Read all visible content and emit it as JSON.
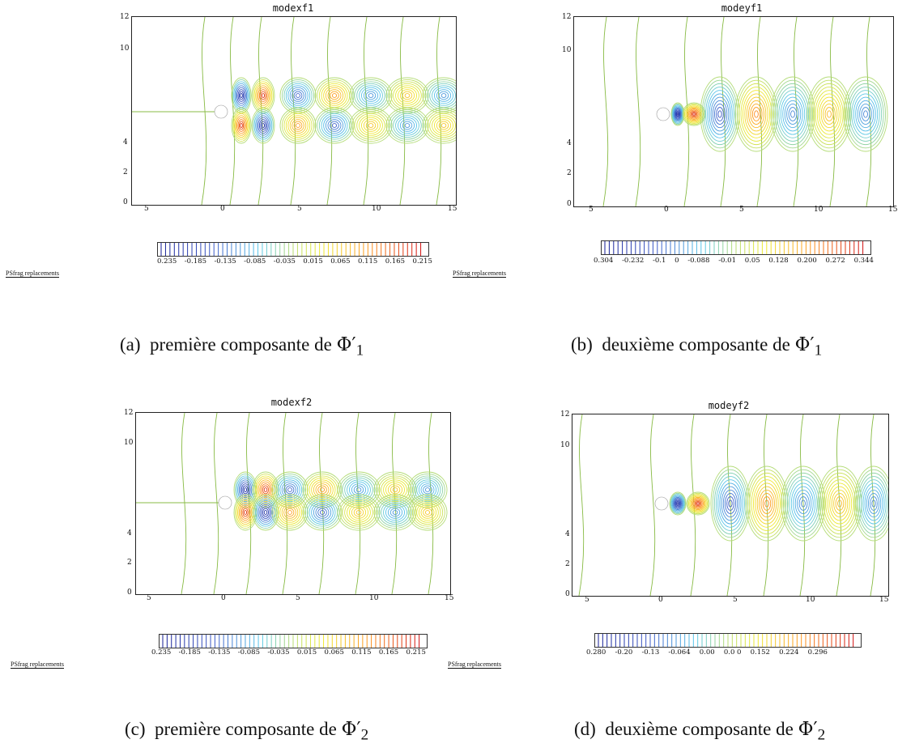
{
  "panels": [
    {
      "id": "a",
      "title": "modexf1",
      "colorbar_labels": [
        "0.235",
        "-0.185",
        "-0.135",
        "-0.085",
        "-0.035",
        "0.015",
        "0.065",
        "0.115",
        "0.165",
        "0.215"
      ],
      "psfrag": "PSfrag replacements",
      "caption_label": "(a)",
      "caption_text": "première composante de",
      "caption_symbol": "Φ′",
      "caption_sub": "1"
    },
    {
      "id": "b",
      "title": "modeyf1",
      "colorbar_labels": [
        "0.304",
        "-0.232",
        "-0.1",
        "0",
        "-0.088",
        "-0.01",
        "0.05",
        "0.128",
        "0.200",
        "0.272",
        "0.344"
      ],
      "psfrag": "PSfrag replacements",
      "caption_label": "(b)",
      "caption_text": "deuxième composante de",
      "caption_symbol": "Φ′",
      "caption_sub": "1"
    },
    {
      "id": "c",
      "title": "modexf2",
      "colorbar_labels": [
        "0.235",
        "-0.185",
        "-0.135",
        "-0.085",
        "-0.035",
        "0.015",
        "0.065",
        "0.115",
        "0.165",
        "0.215"
      ],
      "psfrag": "PSfrag replacements",
      "caption_label": "(c)",
      "caption_text": "première composante de",
      "caption_symbol": "Φ′",
      "caption_sub": "2"
    },
    {
      "id": "d",
      "title": "modeyf2",
      "colorbar_labels": [
        "0.280",
        "-0.20",
        "-0.13",
        "-0.064",
        "0.00",
        "0.0 0",
        "0.152",
        "0.224",
        "0.296"
      ],
      "psfrag": "",
      "caption_label": "(d)",
      "caption_text": "deuxième composante de",
      "caption_symbol": "Φ′",
      "caption_sub": "2"
    }
  ],
  "axes": {
    "x_ticks": [
      "5",
      "0",
      "5",
      "10",
      "15"
    ],
    "y_ticks": [
      "0",
      "2",
      "4",
      "10",
      "12"
    ]
  },
  "colors": {
    "blue": "#2233aa",
    "cyan": "#55ccee",
    "yellow": "#eeee33",
    "orange": "#ff9922",
    "red": "#dd1111",
    "green": "#88bb44"
  }
}
